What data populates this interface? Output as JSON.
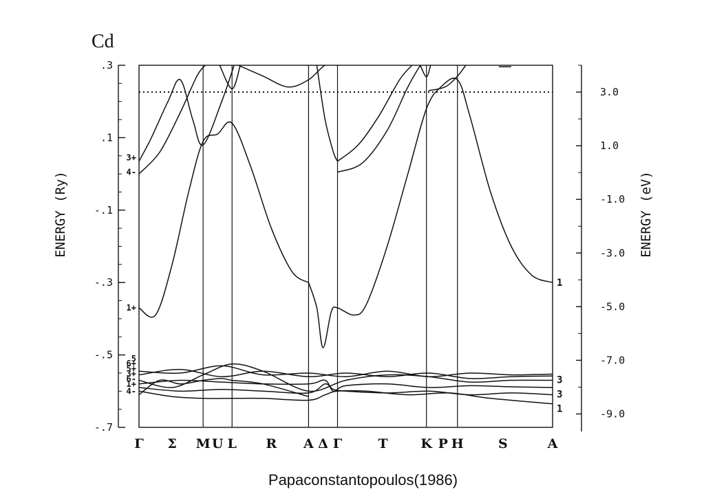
{
  "element_label": "Cd",
  "caption": "Papaconstantopoulos(1986)",
  "chart_data": {
    "type": "line",
    "title": "",
    "ylabel_left": "ENERGY (Ry)",
    "ylabel_right": "ENERGY (eV)",
    "ylim_ry": [
      -0.7,
      0.3
    ],
    "ylim_ev": [
      -9.5,
      4.0
    ],
    "left_ticks": [
      ".3",
      ".1",
      "-.1",
      "-.3",
      "-.5",
      "-.7"
    ],
    "left_tick_values": [
      0.3,
      0.1,
      -0.1,
      -0.3,
      -0.5,
      -0.7
    ],
    "right_ticks": [
      "3.0",
      "1.0",
      "-1.0",
      "-3.0",
      "-5.0",
      "-7.0",
      "-9.0"
    ],
    "right_tick_values": [
      3.0,
      1.0,
      -1.0,
      -3.0,
      -5.0,
      -7.0,
      -9.0
    ],
    "fermi_level_ry": 0.226,
    "k_points": [
      {
        "label": "Γ",
        "pos": 0.0
      },
      {
        "label": "Σ",
        "pos": 0.08
      },
      {
        "label": "M",
        "pos": 0.155
      },
      {
        "label": "U",
        "pos": 0.19
      },
      {
        "label": "L",
        "pos": 0.225
      },
      {
        "label": "R",
        "pos": 0.32
      },
      {
        "label": "A",
        "pos": 0.41
      },
      {
        "label": "Δ",
        "pos": 0.445
      },
      {
        "label": "Γ",
        "pos": 0.48
      },
      {
        "label": "T",
        "pos": 0.59
      },
      {
        "label": "K",
        "pos": 0.695
      },
      {
        "label": "P",
        "pos": 0.735
      },
      {
        "label": "H",
        "pos": 0.77
      },
      {
        "label": "S",
        "pos": 0.88
      },
      {
        "label": "A",
        "pos": 1.0
      }
    ],
    "vertical_lines": [
      0.155,
      0.225,
      0.41,
      0.48,
      0.695,
      0.77
    ],
    "left_labels": [
      {
        "text": "3+",
        "y": 0.045
      },
      {
        "text": "4-",
        "y": 0.005
      },
      {
        "text": "1+",
        "y": -0.37
      },
      {
        "text": "5",
        "y": -0.51
      },
      {
        "text": "6+",
        "y": -0.524
      },
      {
        "text": "5+",
        "y": -0.538
      },
      {
        "text": "3+",
        "y": -0.552
      },
      {
        "text": "6-",
        "y": -0.566
      },
      {
        "text": "1+",
        "y": -0.58
      },
      {
        "text": "4-",
        "y": -0.6
      }
    ],
    "right_labels": [
      {
        "text": "1",
        "y": -0.3
      },
      {
        "text": "3",
        "y": -0.568
      },
      {
        "text": "3",
        "y": -0.608
      },
      {
        "text": "1",
        "y": -0.648
      }
    ],
    "series": [
      {
        "x": [
          0,
          0.04,
          0.08,
          0.12,
          0.155,
          0.19,
          0.225,
          0.27,
          0.32,
          0.37,
          0.41
        ],
        "y": [
          -0.37,
          -0.39,
          -0.25,
          -0.05,
          0.09,
          0.11,
          0.14,
          0.02,
          -0.15,
          -0.27,
          -0.3
        ]
      },
      {
        "x": [
          0.41,
          0.43,
          0.445,
          0.465,
          0.48,
          0.52,
          0.55,
          0.6,
          0.65,
          0.695,
          0.73,
          0.77,
          0.8,
          0.85,
          0.9,
          0.95,
          1.0
        ],
        "y": [
          -0.3,
          -0.37,
          -0.48,
          -0.38,
          -0.37,
          -0.39,
          -0.36,
          -0.2,
          0.0,
          0.18,
          0.24,
          0.26,
          0.16,
          -0.05,
          -0.2,
          -0.28,
          -0.3
        ]
      },
      {
        "x": [
          0,
          0.03,
          0.07,
          0.1,
          0.13,
          0.155,
          0.2,
          0.23
        ],
        "y": [
          0.035,
          0.1,
          0.2,
          0.26,
          0.15,
          0.08,
          0.2,
          0.3
        ]
      },
      {
        "x": [
          0,
          0.05,
          0.1,
          0.14,
          0.16
        ],
        "y": [
          0.0,
          0.06,
          0.17,
          0.27,
          0.3
        ]
      },
      {
        "x": [
          0.24,
          0.3,
          0.36,
          0.41,
          0.45,
          0.48
        ],
        "y": [
          0.3,
          0.27,
          0.24,
          0.26,
          0.3,
          0.3
        ]
      },
      {
        "x": [
          0.48,
          0.53,
          0.58,
          0.63,
          0.66
        ],
        "y": [
          0.035,
          0.08,
          0.16,
          0.26,
          0.3
        ]
      },
      {
        "x": [
          0.48,
          0.54,
          0.6,
          0.65,
          0.68
        ],
        "y": [
          0.005,
          0.03,
          0.12,
          0.24,
          0.3
        ]
      },
      {
        "x": [
          0.43,
          0.45,
          0.47,
          0.48
        ],
        "y": [
          0.3,
          0.15,
          0.06,
          0.035
        ]
      },
      {
        "x": [
          0.7,
          0.74,
          0.77,
          0.79
        ],
        "y": [
          0.23,
          0.24,
          0.27,
          0.3
        ]
      },
      {
        "x": [
          0.195,
          0.225,
          0.245
        ],
        "y": [
          0.3,
          0.235,
          0.3
        ]
      },
      {
        "x": [
          0.68,
          0.695,
          0.705
        ],
        "y": [
          0.3,
          0.268,
          0.3
        ]
      },
      {
        "x": [
          0.87,
          0.9
        ],
        "y": [
          0.296,
          0.296
        ]
      },
      {
        "x": [
          0,
          0.1,
          0.2,
          0.3,
          0.41,
          0.5,
          0.6,
          0.7,
          0.8,
          0.9,
          1.0
        ],
        "y": [
          -0.545,
          -0.55,
          -0.53,
          -0.555,
          -0.55,
          -0.56,
          -0.545,
          -0.56,
          -0.55,
          -0.555,
          -0.553
        ]
      },
      {
        "x": [
          0,
          0.1,
          0.2,
          0.3,
          0.41,
          0.5,
          0.6,
          0.7,
          0.8,
          0.9,
          1.0
        ],
        "y": [
          -0.555,
          -0.54,
          -0.56,
          -0.545,
          -0.56,
          -0.55,
          -0.56,
          -0.55,
          -0.565,
          -0.56,
          -0.558
        ]
      },
      {
        "x": [
          0,
          0.08,
          0.155,
          0.225,
          0.3,
          0.41,
          0.5,
          0.6,
          0.7,
          0.8,
          0.9,
          1.0
        ],
        "y": [
          -0.57,
          -0.59,
          -0.555,
          -0.525,
          -0.545,
          -0.6,
          -0.57,
          -0.555,
          -0.56,
          -0.575,
          -0.57,
          -0.57
        ]
      },
      {
        "x": [
          0,
          0.1,
          0.2,
          0.3,
          0.41,
          0.45,
          0.47,
          0.5,
          0.6,
          0.7,
          0.8,
          0.9,
          1.0
        ],
        "y": [
          -0.58,
          -0.57,
          -0.575,
          -0.58,
          -0.58,
          -0.57,
          -0.6,
          -0.585,
          -0.58,
          -0.59,
          -0.585,
          -0.588,
          -0.59
        ]
      },
      {
        "x": [
          0,
          0.1,
          0.2,
          0.3,
          0.41,
          0.45,
          0.47,
          0.5,
          0.6,
          0.7,
          0.8,
          0.9,
          1.0
        ],
        "y": [
          -0.59,
          -0.6,
          -0.595,
          -0.6,
          -0.605,
          -0.58,
          -0.595,
          -0.6,
          -0.605,
          -0.6,
          -0.61,
          -0.605,
          -0.61
        ]
      },
      {
        "x": [
          0,
          0.08,
          0.155,
          0.225,
          0.3,
          0.41,
          0.45,
          0.48,
          0.55,
          0.65,
          0.75,
          0.85,
          1.0
        ],
        "y": [
          -0.6,
          -0.615,
          -0.62,
          -0.62,
          -0.62,
          -0.625,
          -0.61,
          -0.6,
          -0.6,
          -0.61,
          -0.605,
          -0.62,
          -0.635
        ]
      },
      {
        "x": [
          0,
          0.05,
          0.1,
          0.155,
          0.2,
          0.225,
          0.3,
          0.41
        ],
        "y": [
          -0.61,
          -0.57,
          -0.58,
          -0.57,
          -0.565,
          -0.57,
          -0.58,
          -0.615
        ]
      }
    ]
  }
}
